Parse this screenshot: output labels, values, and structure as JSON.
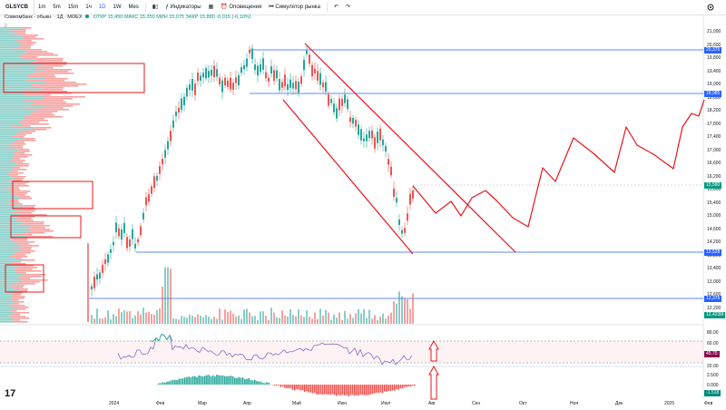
{
  "toolbar": {
    "symbol": "GLSYCB",
    "intervals": [
      "1m",
      "5m",
      "15m",
      "1ч",
      "1D",
      "1W",
      "Mes"
    ],
    "indicators_label": "Индикаторы",
    "alerts_label": "Оповещения",
    "replay_label": "Симулятор рынка"
  },
  "legend": {
    "title": "Совкомбанк - обыкн. · 1Д · MOEX",
    "ohlc": "ОТКР 15,450  МАКС 15,350  МИН 15,075  ЗАКР 15,880  -0,015 (-0,10%)",
    "sub": "2"
  },
  "price_axis": {
    "ticks": [
      "21,000",
      "20,600",
      "19,800",
      "19,400",
      "19,000",
      "18,600",
      "18,200",
      "17,800",
      "17,400",
      "17,000",
      "16,600",
      "16,200",
      "15,800",
      "15,400",
      "15,000",
      "14,600",
      "14,200",
      "13,800",
      "13,400",
      "13,000",
      "12,600",
      "12,200"
    ],
    "labels": [
      {
        "text": "20,375",
        "color": "#2962ff"
      },
      {
        "text": "18,985",
        "color": "#2962ff"
      },
      {
        "text": "15,580",
        "color": "#089981"
      },
      {
        "text": "13,528",
        "color": "#2962ff"
      },
      {
        "text": "12,375",
        "color": "#2962ff"
      },
      {
        "text": "12,423M",
        "color": "#089981"
      }
    ]
  },
  "rsi_axis": {
    "ticks": [
      "80.00",
      "60.00",
      "20.00"
    ],
    "value": "45.75",
    "value_color": "#880e4f"
  },
  "macd_axis": {
    "ticks": [
      "2.500",
      "0.000"
    ],
    "value": "-1.518",
    "value_color": "#00897b"
  },
  "time_axis": {
    "ticks": [
      "2024",
      "Фев",
      "Мар",
      "Апр",
      "Май",
      "Июн",
      "Июл",
      "Авг",
      "Сен",
      "Окт",
      "Ноя",
      "Дек",
      "2025",
      "Фев"
    ]
  },
  "logo_text": "17",
  "colors": {
    "up": "#26a69a",
    "down": "#ef5350",
    "annotation": "#e8151b",
    "level": "#2962ff"
  }
}
